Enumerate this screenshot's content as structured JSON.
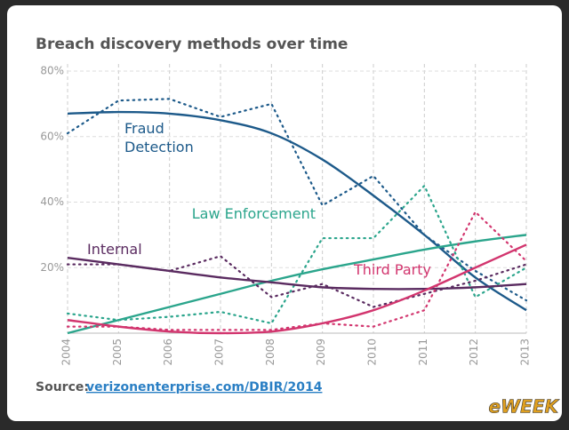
{
  "chart_data": {
    "type": "line",
    "title": "Breach discovery methods over time",
    "categories": [
      "2004",
      "2005",
      "2006",
      "2007",
      "2008",
      "2009",
      "2010",
      "2011",
      "2012",
      "2013"
    ],
    "series": [
      {
        "name": "Fraud Detection",
        "color": "#1d5a8a",
        "values": [
          61,
          71,
          71.5,
          66,
          70,
          39,
          48,
          30,
          19,
          10
        ],
        "trend": [
          67,
          67.5,
          67,
          65,
          61,
          53,
          42,
          30,
          17,
          7
        ]
      },
      {
        "name": "Law Enforcement",
        "color": "#2ba58c",
        "values": [
          6,
          4,
          5,
          6.5,
          3,
          29,
          29,
          45,
          11,
          20
        ],
        "trend": [
          0,
          4,
          8,
          12,
          16,
          19.5,
          22.5,
          25.5,
          28,
          30
        ]
      },
      {
        "name": "Internal",
        "color": "#5a2b60",
        "values": [
          21,
          21,
          19,
          23.5,
          11,
          15,
          8,
          12,
          16,
          21
        ],
        "trend": [
          23,
          21,
          19,
          17,
          15.5,
          14,
          13.5,
          13.5,
          14,
          15
        ]
      },
      {
        "name": "Third Party",
        "color": "#d2356e",
        "values": [
          2,
          2,
          1,
          1,
          1,
          3,
          2,
          7,
          37,
          22
        ],
        "trend": [
          4,
          2,
          0.5,
          0,
          0.5,
          3,
          7,
          13,
          20,
          27
        ]
      }
    ],
    "ylim": [
      0,
      80
    ],
    "yticks": [
      {
        "value": 20,
        "label": "20%"
      },
      {
        "value": 40,
        "label": "40%"
      },
      {
        "value": 60,
        "label": "60%"
      },
      {
        "value": 80,
        "label": "80%"
      }
    ],
    "grid": true,
    "source_label": "Source:",
    "source_link": "verizonenterprise.com/DBIR/2014",
    "watermark": "eWEEK"
  }
}
